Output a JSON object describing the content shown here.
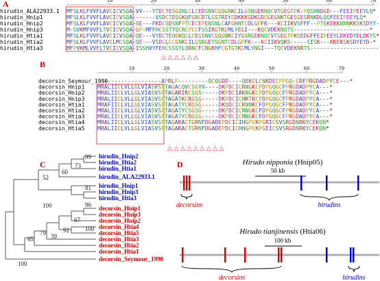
{
  "panels": {
    "A": {
      "letter": "A",
      "ruler_ticks": [
        "10",
        "20",
        "30",
        "40",
        "50",
        "60",
        "70"
      ],
      "rows": [
        {
          "name": "hirudin_ALA22933.1",
          "seq": "MFSLKLFVVFLAVCICVSQA-VV---YTDCTESGQNLCLCEDSNVCGQGNKCILGSNGEKNQCVTGEGTPK-PQSHNDGD---FEEIPEEYLQ*"
        },
        {
          "name": "hirudin_Hnip1",
          "seq": "MFSLKLFVVFLAVCICVSQA-------VSDCTEQGKQFGNCDTLGSTRIYCDKKKGDKGDCGEGNKTGESGESRNKDLQQFEEIPEEYLQ*"
        },
        {
          "name": "hirudin_Hnip2",
          "seq": "MFSLKLFVVFLAVCICVSQA-QE---FKDCSDSNFPTCECEPENSNLCAFGHNTCDLGPFK---KCIIKVSFFF--PTSKEKKNNNKKSKSDYY--*"
        },
        {
          "name": "hirudin_Hnip3",
          "seq": "M-SVKMFVVFLTVCICVSQA-GP-MFFHCSSTYQCNCPCCFSSIRGTKCMLYEGI---KQCVDEKNQTS-----------------------*"
        },
        {
          "name": "hirudin_Htia1",
          "seq": "MFSLKLFVVFLAVCICVSQA-QE---VYDCTEQGKQCLCEGSNVCGQGNKCIYGSNGEKNQCVTGEGTPKSEDGFFEIPEEYLDKEDYDLDKYS*"
        },
        {
          "name": "hirudin_Htia2",
          "seq": "MFSLKLFVVFLAVCLMCSQA-QE---VSDCLCCGNKCILGSNGETSGNTCDLGPFK---KCIIKVQKS-----SISK---KKEKSKSDYEYD-*"
        },
        {
          "name": "hirudin_Htia3",
          "seq": "MFPVKMLVVFLTVCICVSQA-ISSHVYFEHCSSSTLQRNCFCNGKHFCGTGTKCMLYNGI---TQCVDEKNRTS---------------------*"
        }
      ],
      "markers": "△ △  △  △  △  △"
    },
    "B": {
      "letter": "B",
      "ruler_ticks": [
        "10",
        "20",
        "30",
        "40",
        "50",
        "60",
        "70"
      ],
      "rows": [
        {
          "name": "decorsin_Seymour_1990",
          "seq": "-------------------APRLP---------QCQGDD----QEKCLCNKDECPPGQ-CRFPRGDADPYCE---*"
        },
        {
          "name": "decorsin_Hnip1",
          "seq": "MRALIICLVLLGLVIASVSPTAGACQVCSGYN----DKPDCICRNGKCPDPGQGCFPRGDADPYCA---*"
        },
        {
          "name": "decorsin_Hnip2",
          "seq": "MRALIICLVLLGLVIASVSPTAGAKIRCSGS-----DKPDCIAKNGKCPDPGQGCFPRGDADPYCA---*"
        },
        {
          "name": "decorsin_Hnip3",
          "seq": "MRALIICLVLLGLVIASVSPTAGATKCRGSG-----DKPDCICNKTKCPDPGQGCFPRGDADPYCA---*"
        },
        {
          "name": "decorsin_Htia1",
          "seq": "MRAFIICLVLLGLVIASVSPTAGATYCRGSG-----DKQDCICKNNKCFDPGQGCFPRGDADPYCA---*"
        },
        {
          "name": "decorsin_Htia2",
          "seq": "MRALIICLVLLGLVIASVSPTAGATYCSGSG-----DKPDCICNNGKCFDPGQGCFPRGDADPYCA---*"
        },
        {
          "name": "decorsin_Htia3",
          "seq": "MRALIICLVLLGLVIASVSPTAGATYCRGSG-----DKPDCICNNGKCFDPGQGCFPRGDADPYCA---*"
        },
        {
          "name": "decorsin_Htia4",
          "seq": "MRALIICLVLLGLVIASVSPTAGAKACTGRNFDGADEPDCICIHGPCKPGRICSVSRGDNRKYCEKQN*"
        },
        {
          "name": "decorsin_Htia5",
          "seq": "MRALIICLVLLGLVIASVSPTAGAKACTGRNFDGADEPDCICHHGPCKPGEICSVSRGDNRKYCEKQN*"
        }
      ],
      "markers": "△  △  △ △  △  △ △ △  △"
    },
    "C": {
      "letter": "C",
      "bootstrap": [
        "99",
        "73",
        "60",
        "52",
        "100",
        "81",
        "96",
        "67",
        "92",
        "39",
        "100",
        "79",
        "65",
        "100"
      ],
      "leaves": [
        {
          "name": "hirudin_Hnip2",
          "color": "#0000cc"
        },
        {
          "name": "hirudin_Htia2",
          "color": "#0000cc"
        },
        {
          "name": "hirudin_Htia1",
          "color": "#0000cc"
        },
        {
          "name": "hirudin_ALA22933.1",
          "color": "#0000cc"
        },
        {
          "name": "hirudin_Hnip1",
          "color": "#0000cc"
        },
        {
          "name": "hirudin_Hnip3",
          "color": "#0000cc"
        },
        {
          "name": "hirudin_Htia3",
          "color": "#0000cc"
        },
        {
          "name": "decorsin_Hnip1",
          "color": "#cc0000"
        },
        {
          "name": "decorsin_Hnip3",
          "color": "#cc0000"
        },
        {
          "name": "decorsin_Hnip2",
          "color": "#cc0000"
        },
        {
          "name": "decorsin_Htia4",
          "color": "#cc0000"
        },
        {
          "name": "decorsin_Htia5",
          "color": "#cc0000"
        },
        {
          "name": "decorsin_Htia3",
          "color": "#cc0000"
        },
        {
          "name": "decorsin_Htia2",
          "color": "#cc0000"
        },
        {
          "name": "decorsin_Htia1",
          "color": "#cc0000"
        },
        {
          "name": "decorsin_Seymour_1990",
          "color": "#cc0000"
        }
      ]
    },
    "D": {
      "letter": "D",
      "top": {
        "species": "Hirudo nipponia",
        "strain": " (Hnip05)",
        "scale": "50 kb",
        "label_left": "decorsins",
        "label_right": "hirudins"
      },
      "bottom": {
        "species": "Hirudo tianjinensis",
        "strain": " (Htia06)",
        "scale": "100 kb",
        "label_left": "decorsins",
        "label_right": "hirudins"
      }
    }
  },
  "colors": {
    "hirudin": "#0000cc",
    "decorsin": "#cc0000",
    "panel_letter": "#cc0000",
    "box": "#e05050",
    "marker": "#e03030",
    "line": "#b0b0b0"
  }
}
